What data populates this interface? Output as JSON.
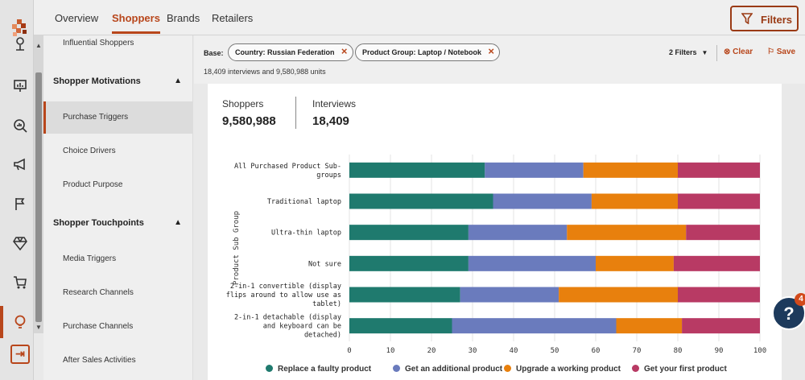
{
  "top_nav": {
    "tabs": [
      {
        "label": "Overview",
        "active": false
      },
      {
        "label": "Shoppers",
        "active": true
      },
      {
        "label": "Brands",
        "active": false
      },
      {
        "label": "Retailers",
        "active": false
      }
    ],
    "filters_button": "Filters"
  },
  "rail": {
    "icons": [
      "location-pin-icon",
      "presentation-icon",
      "analytics-search-icon",
      "megaphone-icon",
      "cursor-flag-icon",
      "diamond-icon",
      "cart-icon",
      "lightbulb-icon"
    ],
    "collapse_icon": "expand-panel-icon",
    "collapse_glyph": "⇥",
    "accent": "#b8461b"
  },
  "subnav": {
    "items_top": [
      "Influential Shoppers"
    ],
    "sections": [
      {
        "title": "Shopper Motivations",
        "items": [
          "Purchase Triggers",
          "Choice Drivers",
          "Product Purpose"
        ]
      },
      {
        "title": "Shopper Touchpoints",
        "items": [
          "Media Triggers",
          "Research Channels",
          "Purchase Channels",
          "After Sales Activities"
        ]
      }
    ],
    "active_item": "Purchase Triggers"
  },
  "filterbar": {
    "base_label": "Base:",
    "chips": [
      "Country: Russian Federation",
      "Product Group: Laptop / Notebook"
    ],
    "units_text": "18,409 interviews and 9,580,988 units",
    "filter_count": "2 Filters",
    "clear": "Clear",
    "save": "Save"
  },
  "stats": {
    "shoppers_label": "Shoppers",
    "shoppers_value": "9,580,988",
    "interviews_label": "Interviews",
    "interviews_value": "18,409"
  },
  "help": {
    "glyph": "?",
    "badge": "4"
  },
  "chart_data": {
    "type": "bar",
    "orientation": "horizontal",
    "stacked": true,
    "ylabel": "Product Sub Group",
    "xlim": [
      0,
      100
    ],
    "xticks": [
      0,
      10,
      20,
      30,
      40,
      50,
      60,
      70,
      80,
      90,
      100
    ],
    "categories": [
      [
        "All Purchased Product Sub-",
        "groups"
      ],
      [
        "Traditional laptop"
      ],
      [
        "Ultra-thin laptop"
      ],
      [
        "Not sure"
      ],
      [
        "2-in-1 convertible (display",
        "flips around to allow use as",
        "tablet)"
      ],
      [
        "2-in-1 detachable (display",
        "and keyboard can be",
        "detached)"
      ]
    ],
    "series": [
      {
        "name": "Replace a faulty product",
        "color": "#1f7a6e",
        "values": [
          33,
          35,
          29,
          29,
          27,
          25
        ]
      },
      {
        "name": "Get an additional product",
        "color": "#6a7bbd",
        "values": [
          24,
          24,
          24,
          31,
          24,
          40
        ]
      },
      {
        "name": "Upgrade a working product",
        "color": "#e8800d",
        "values": [
          23,
          21,
          29,
          19,
          29,
          16
        ]
      },
      {
        "name": "Get your first product",
        "color": "#b83a64",
        "values": [
          20,
          20,
          18,
          21,
          20,
          19
        ]
      }
    ],
    "grid": true,
    "legend": "bottom"
  }
}
